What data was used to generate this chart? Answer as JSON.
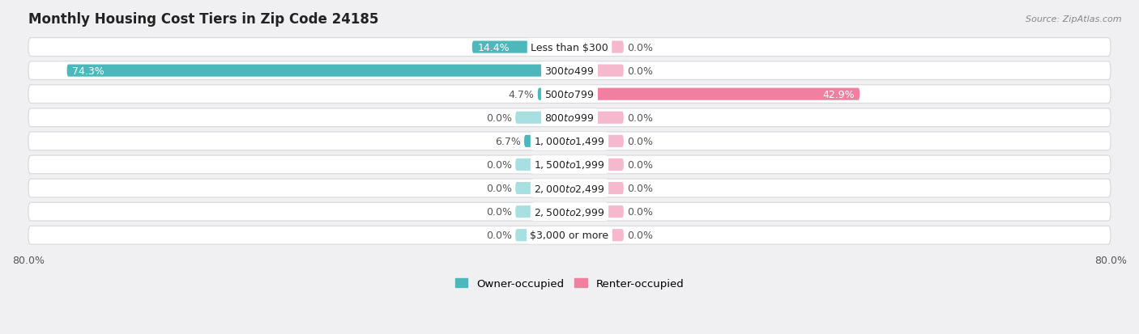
{
  "title": "Monthly Housing Cost Tiers in Zip Code 24185",
  "source": "Source: ZipAtlas.com",
  "categories": [
    "Less than $300",
    "$300 to $499",
    "$500 to $799",
    "$800 to $999",
    "$1,000 to $1,499",
    "$1,500 to $1,999",
    "$2,000 to $2,499",
    "$2,500 to $2,999",
    "$3,000 or more"
  ],
  "owner_values": [
    14.4,
    74.3,
    4.7,
    0.0,
    6.7,
    0.0,
    0.0,
    0.0,
    0.0
  ],
  "renter_values": [
    0.0,
    0.0,
    42.9,
    0.0,
    0.0,
    0.0,
    0.0,
    0.0,
    0.0
  ],
  "owner_color": "#4db8bc",
  "renter_color": "#f080a0",
  "owner_stub_color": "#a8dfe0",
  "renter_stub_color": "#f5b8cc",
  "owner_label": "Owner-occupied",
  "renter_label": "Renter-occupied",
  "bg_color": "#f0f0f2",
  "row_color": "#ffffff",
  "row_edge_color": "#d8d8dc",
  "xlim": 80.0,
  "stub_size": 8.0,
  "title_fontsize": 12,
  "label_fontsize": 9,
  "cat_fontsize": 9,
  "tick_fontsize": 9,
  "source_fontsize": 8
}
